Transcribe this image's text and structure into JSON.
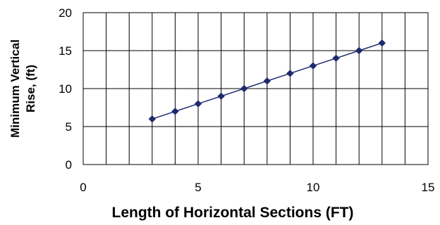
{
  "chart_data": {
    "type": "line",
    "title": "",
    "xlabel": "Length of Horizontal Sections (FT)",
    "ylabel_lines": [
      "Minimum Vertical",
      "Rise, (ft)"
    ],
    "xlim": [
      0,
      15
    ],
    "ylim": [
      0,
      20
    ],
    "x_ticks": [
      "0",
      "5",
      "10",
      "15"
    ],
    "y_ticks": [
      "0",
      "5",
      "10",
      "15",
      "20"
    ],
    "grid": true,
    "legend": "none",
    "series": [
      {
        "color": "#1f2a6e",
        "marker": "diamond",
        "x": [
          3,
          4,
          5,
          6,
          7,
          8,
          9,
          10,
          11,
          12,
          13
        ],
        "y": [
          6,
          7,
          8,
          9,
          10,
          11,
          12,
          13,
          14,
          15,
          16
        ]
      }
    ]
  }
}
